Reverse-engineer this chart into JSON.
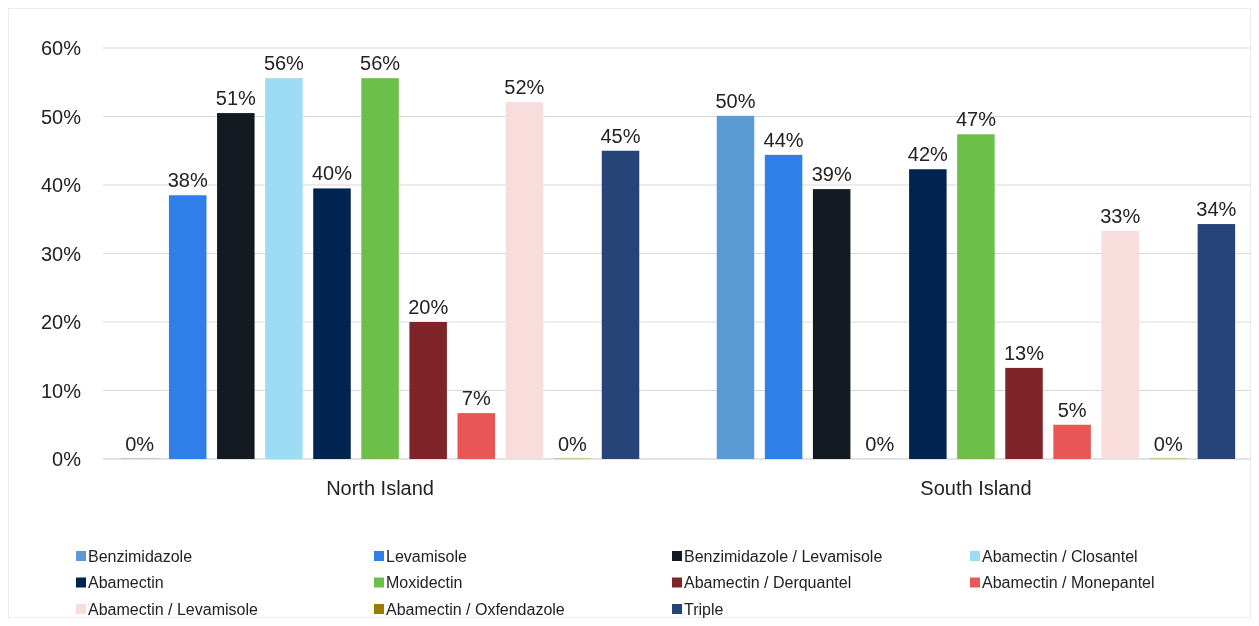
{
  "chart_data": {
    "type": "bar",
    "categories": [
      "North Island",
      "South Island"
    ],
    "series": [
      {
        "name": "Benzimidazole",
        "color": "#5b9bd5",
        "values": [
          0,
          50.1
        ],
        "value_labels": [
          "0%",
          "50%"
        ]
      },
      {
        "name": "Levamisole",
        "color": "#2e7fe8",
        "values": [
          38.5,
          44.4
        ],
        "value_labels": [
          "38%",
          "44%"
        ]
      },
      {
        "name": "Benzimidazole / Levamisole",
        "color": "#131a22",
        "values": [
          50.5,
          39.4
        ],
        "value_labels": [
          "51%",
          "39%"
        ]
      },
      {
        "name": "Abamectin / Closantel",
        "color": "#9ddcf5",
        "values": [
          55.6,
          0
        ],
        "value_labels": [
          "56%",
          "0%"
        ]
      },
      {
        "name": "Abamectin",
        "color": "#00234f",
        "values": [
          39.5,
          42.3
        ],
        "value_labels": [
          "40%",
          "42%"
        ]
      },
      {
        "name": "Moxidectin",
        "color": "#6cc04a",
        "values": [
          55.6,
          47.4
        ],
        "value_labels": [
          "56%",
          "47%"
        ]
      },
      {
        "name": "Abamectin / Derquantel",
        "color": "#7f2429",
        "values": [
          20,
          13.3
        ],
        "value_labels": [
          "20%",
          "13%"
        ]
      },
      {
        "name": "Abamectin / Monepantel",
        "color": "#e85656",
        "values": [
          6.7,
          5
        ],
        "value_labels": [
          "7%",
          "5%"
        ]
      },
      {
        "name": "Abamectin / Levamisole",
        "color": "#f9dcdc",
        "values": [
          52.1,
          33.3
        ],
        "value_labels": [
          "52%",
          "33%"
        ]
      },
      {
        "name": "Abamectin / Oxfendazole",
        "color": "#9c7a00",
        "values": [
          0,
          0
        ],
        "value_labels": [
          "0%",
          "0%"
        ]
      },
      {
        "name": "Triple",
        "color": "#264478",
        "values": [
          45,
          34.3
        ],
        "value_labels": [
          "45%",
          "34%"
        ]
      }
    ],
    "ylim": [
      0,
      60
    ],
    "yticks": [
      {
        "value": 0,
        "label": "0%"
      },
      {
        "value": 10,
        "label": "10%"
      },
      {
        "value": 20,
        "label": "20%"
      },
      {
        "value": 30,
        "label": "30%"
      },
      {
        "value": 40,
        "label": "40%"
      },
      {
        "value": 50,
        "label": "50%"
      },
      {
        "value": 60,
        "label": "60%"
      }
    ],
    "grid": "y",
    "legend": "bottom"
  }
}
